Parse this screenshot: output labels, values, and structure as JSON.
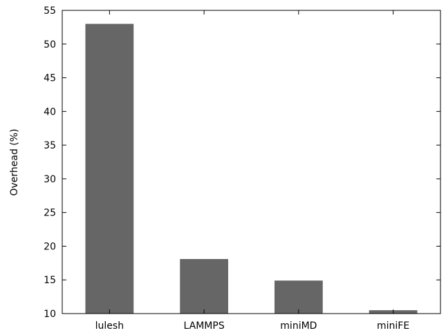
{
  "chart_data": {
    "type": "bar",
    "title": "",
    "xlabel": "",
    "ylabel": "Overhead (%)",
    "categories": [
      "lulesh",
      "LAMMPS",
      "miniMD",
      "miniFE"
    ],
    "values": [
      53.0,
      18.1,
      14.9,
      10.5
    ],
    "ylim": [
      10,
      55
    ],
    "yticks": [
      10,
      15,
      20,
      25,
      30,
      35,
      40,
      45,
      50,
      55
    ],
    "ytick_labels": [
      "10",
      "15",
      "20",
      "25",
      "30",
      "35",
      "40",
      "45",
      "50",
      "55"
    ],
    "grid": false,
    "legend": "none",
    "bar_color": "#666666"
  }
}
